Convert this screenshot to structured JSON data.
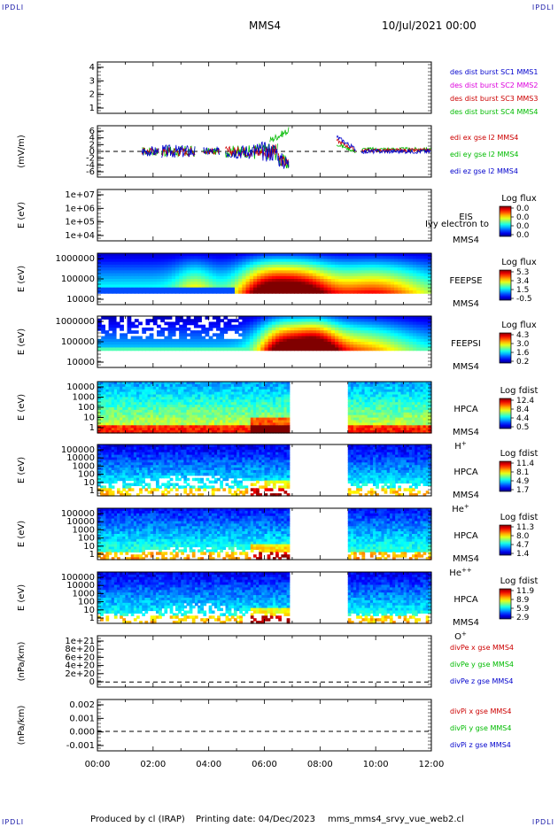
{
  "header": {
    "corner_tl": "IPDLI",
    "corner_tr": "IPDLI",
    "corner_bl": "IPDLI",
    "corner_br": "IPDLI",
    "spacecraft": "MMS4",
    "date": "10/Jul/2021 00:00"
  },
  "footer": {
    "produced_by": "Produced by cl (IRAP)",
    "printing_date": "Printing date: 04/Dec/2023",
    "file_name": "mms_mms4_srvy_vue_web2.cl"
  },
  "colors": {
    "red": "#cc0000",
    "green": "#00bb00",
    "blue": "#0000cc",
    "magenta": "#dd00dd"
  },
  "chart_data": [
    {
      "id": "p1",
      "type": "line",
      "yticks": [
        "4",
        "3",
        "2",
        "1"
      ],
      "legend": [
        {
          "label": "des dist burst SC1 MMS1",
          "color": "#0000cc"
        },
        {
          "label": "des dist burst SC2 MMS2",
          "color": "#dd00dd"
        },
        {
          "label": "des dist burst SC3 MMS3",
          "color": "#cc0000"
        },
        {
          "label": "des dist burst SC4 MMS4",
          "color": "#00bb00"
        }
      ]
    },
    {
      "id": "p2",
      "type": "line",
      "ylabel": "(mV/m)",
      "yticks": [
        "6",
        "4",
        "2",
        "0",
        "-2",
        "-4",
        "-6"
      ],
      "legend": [
        {
          "label": "edi ex gse l2 MMS4",
          "color": "#cc0000"
        },
        {
          "label": "edi ey gse l2 MMS4",
          "color": "#00bb00"
        },
        {
          "label": "edi ez gse l2 MMS4",
          "color": "#0000cc"
        }
      ]
    },
    {
      "id": "p3",
      "type": "heatmap",
      "ylabel": "E (eV)",
      "yticks": [
        "1e+07",
        "1e+06",
        "1e+05",
        "1e+04"
      ],
      "instrument": [
        "EIS",
        "MMS4"
      ],
      "overlay_text": "Ivy electron to",
      "colorbar_title": "Log flux",
      "colorbar_ticks": [
        "0.0",
        "0.0",
        "0.0",
        "0.0"
      ]
    },
    {
      "id": "p4",
      "type": "heatmap",
      "ylabel": "E (eV)",
      "yticks": [
        "1000000",
        "100000",
        "10000"
      ],
      "instrument": [
        "FEEPSE",
        "MMS4"
      ],
      "colorbar_title": "Log flux",
      "colorbar_ticks": [
        "5.3",
        "3.4",
        "1.5",
        "-0.5"
      ]
    },
    {
      "id": "p5",
      "type": "heatmap",
      "ylabel": "E (eV)",
      "yticks": [
        "1000000",
        "100000",
        "10000"
      ],
      "instrument": [
        "FEEPSI",
        "MMS4"
      ],
      "colorbar_title": "Log flux",
      "colorbar_ticks": [
        "4.3",
        "3.0",
        "1.6",
        "0.2"
      ]
    },
    {
      "id": "p6",
      "type": "heatmap",
      "ylabel": "E (eV)",
      "yticks": [
        "10000",
        "1000",
        "100",
        "10",
        "1"
      ],
      "instrument": [
        "HPCA",
        "MMS4"
      ],
      "species": "H",
      "species_sup": "+",
      "colorbar_title": "Log fdist",
      "colorbar_ticks": [
        "12.4",
        "8.4",
        "4.4",
        "0.5"
      ]
    },
    {
      "id": "p7",
      "type": "heatmap",
      "ylabel": "E (eV)",
      "yticks": [
        "100000",
        "10000",
        "1000",
        "100",
        "10",
        "1"
      ],
      "instrument": [
        "HPCA",
        "MMS4"
      ],
      "species": "He",
      "species_sup": "+",
      "colorbar_title": "Log fdist",
      "colorbar_ticks": [
        "11.4",
        "8.1",
        "4.9",
        "1.7"
      ]
    },
    {
      "id": "p8",
      "type": "heatmap",
      "ylabel": "E (eV)",
      "yticks": [
        "100000",
        "10000",
        "1000",
        "100",
        "10",
        "1"
      ],
      "instrument": [
        "HPCA",
        "MMS4"
      ],
      "species": "He",
      "species_sup": "++",
      "colorbar_title": "Log fdist",
      "colorbar_ticks": [
        "11.3",
        "8.0",
        "4.7",
        "1.4"
      ]
    },
    {
      "id": "p9",
      "type": "heatmap",
      "ylabel": "E (eV)",
      "yticks": [
        "100000",
        "10000",
        "1000",
        "100",
        "10",
        "1"
      ],
      "instrument": [
        "HPCA",
        "MMS4"
      ],
      "species": "O",
      "species_sup": "+",
      "colorbar_title": "Log fdist",
      "colorbar_ticks": [
        "11.9",
        "8.9",
        "5.9",
        "2.9"
      ]
    },
    {
      "id": "p10",
      "type": "line",
      "ylabel": "(nPa/km)",
      "yticks": [
        "1e+21",
        "8e+20",
        "6e+20",
        "4e+20",
        "2e+20",
        "0"
      ],
      "legend": [
        {
          "label": "divPe x gse MMS4",
          "color": "#cc0000"
        },
        {
          "label": "divPe y gse MMS4",
          "color": "#00bb00"
        },
        {
          "label": "divPe z gse MMS4",
          "color": "#0000cc"
        }
      ]
    },
    {
      "id": "p11",
      "type": "line",
      "ylabel": "(nPa/km)",
      "yticks": [
        "0.002",
        "0.001",
        "0.000",
        "-0.001"
      ],
      "legend": [
        {
          "label": "divPi x gse MMS4",
          "color": "#cc0000"
        },
        {
          "label": "divPi y gse MMS4",
          "color": "#00bb00"
        },
        {
          "label": "divPi z gse MMS4",
          "color": "#0000cc"
        }
      ],
      "xticks": [
        "00:00",
        "02:00",
        "04:00",
        "06:00",
        "08:00",
        "10:00",
        "12:00"
      ],
      "xlim_hours": [
        0,
        12
      ]
    }
  ]
}
